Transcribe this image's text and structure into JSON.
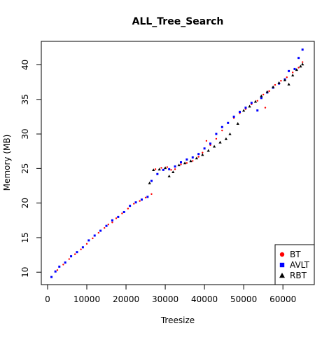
{
  "chart_data": {
    "type": "scatter",
    "title": "ALL_Tree_Search",
    "xlabel": "Treesize",
    "ylabel": "Memory (MB)",
    "xlim": [
      -1600,
      68000
    ],
    "ylim": [
      8.2,
      43.4
    ],
    "x_ticks": [
      0,
      10000,
      20000,
      30000,
      40000,
      50000,
      60000
    ],
    "y_ticks": [
      10,
      15,
      20,
      25,
      30,
      35,
      40
    ],
    "legend_position": "bottom-right",
    "grid": false,
    "series": [
      {
        "name": "BT",
        "color": "#ff0000",
        "marker": "circle",
        "points": [
          [
            1000,
            9.3
          ],
          [
            2500,
            10.3
          ],
          [
            4000,
            11.1
          ],
          [
            5500,
            11.9
          ],
          [
            7000,
            12.6
          ],
          [
            8500,
            13.3
          ],
          [
            10000,
            14.1
          ],
          [
            11500,
            14.9
          ],
          [
            13000,
            15.7
          ],
          [
            14500,
            16.4
          ],
          [
            15500,
            16.9
          ],
          [
            16500,
            17.2
          ],
          [
            17500,
            17.8
          ],
          [
            19000,
            18.5
          ],
          [
            20500,
            19.2
          ],
          [
            22000,
            19.9
          ],
          [
            23500,
            20.3
          ],
          [
            25000,
            20.8
          ],
          [
            26500,
            21.3
          ],
          [
            27500,
            24.9
          ],
          [
            29000,
            25.1
          ],
          [
            30500,
            25.2
          ],
          [
            31500,
            24.8
          ],
          [
            32500,
            24.9
          ],
          [
            34000,
            25.6
          ],
          [
            35500,
            25.8
          ],
          [
            37000,
            26.1
          ],
          [
            38500,
            26.7
          ],
          [
            39500,
            27.3
          ],
          [
            40500,
            29.0
          ],
          [
            41500,
            28.4
          ],
          [
            43000,
            29.3
          ],
          [
            44500,
            30.5
          ],
          [
            46000,
            31.6
          ],
          [
            47500,
            32.3
          ],
          [
            49000,
            33.0
          ],
          [
            50500,
            33.6
          ],
          [
            52000,
            34.3
          ],
          [
            53500,
            34.8
          ],
          [
            55000,
            35.7
          ],
          [
            55500,
            33.8
          ],
          [
            56500,
            36.2
          ],
          [
            58000,
            37.1
          ],
          [
            59500,
            37.7
          ],
          [
            61000,
            38.2
          ],
          [
            62500,
            38.9
          ],
          [
            64000,
            39.6
          ],
          [
            65000,
            40.4
          ]
        ]
      },
      {
        "name": "AVLT",
        "color": "#0000ff",
        "marker": "square",
        "points": [
          [
            1000,
            9.3
          ],
          [
            2000,
            10.1
          ],
          [
            3000,
            10.8
          ],
          [
            4500,
            11.4
          ],
          [
            6000,
            12.3
          ],
          [
            7500,
            12.9
          ],
          [
            9000,
            13.6
          ],
          [
            10500,
            14.6
          ],
          [
            12000,
            15.3
          ],
          [
            13500,
            16.0
          ],
          [
            15000,
            16.7
          ],
          [
            16500,
            17.5
          ],
          [
            18000,
            18.0
          ],
          [
            19500,
            18.7
          ],
          [
            21000,
            19.6
          ],
          [
            22500,
            20.1
          ],
          [
            24000,
            20.5
          ],
          [
            25500,
            20.9
          ],
          [
            26500,
            23.2
          ],
          [
            28000,
            24.2
          ],
          [
            29500,
            24.8
          ],
          [
            31000,
            24.9
          ],
          [
            32500,
            25.3
          ],
          [
            34000,
            25.9
          ],
          [
            35500,
            26.3
          ],
          [
            37000,
            26.6
          ],
          [
            38500,
            27.1
          ],
          [
            40000,
            27.9
          ],
          [
            41500,
            28.6
          ],
          [
            43000,
            30.0
          ],
          [
            44500,
            31.0
          ],
          [
            46000,
            31.6
          ],
          [
            47500,
            32.5
          ],
          [
            49000,
            33.2
          ],
          [
            50500,
            33.8
          ],
          [
            52000,
            34.5
          ],
          [
            53500,
            33.4
          ],
          [
            54500,
            35.2
          ],
          [
            56000,
            36.0
          ],
          [
            57500,
            36.7
          ],
          [
            59000,
            37.3
          ],
          [
            60500,
            37.9
          ],
          [
            61500,
            39.1
          ],
          [
            63000,
            39.4
          ],
          [
            64000,
            41.0
          ],
          [
            65000,
            42.2
          ]
        ]
      },
      {
        "name": "RBT",
        "color": "#000000",
        "marker": "triangle",
        "points": [
          [
            26000,
            22.9
          ],
          [
            27000,
            24.8
          ],
          [
            28500,
            24.9
          ],
          [
            30000,
            25.1
          ],
          [
            31000,
            23.9
          ],
          [
            32000,
            24.5
          ],
          [
            33500,
            25.5
          ],
          [
            35000,
            25.8
          ],
          [
            36500,
            26.1
          ],
          [
            38000,
            26.5
          ],
          [
            39500,
            27.0
          ],
          [
            41000,
            27.6
          ],
          [
            42500,
            28.2
          ],
          [
            44000,
            28.8
          ],
          [
            45500,
            29.3
          ],
          [
            46500,
            30.0
          ],
          [
            48500,
            31.5
          ],
          [
            50000,
            33.4
          ],
          [
            51500,
            34.0
          ],
          [
            53000,
            34.7
          ],
          [
            54500,
            35.5
          ],
          [
            56000,
            36.1
          ],
          [
            57500,
            36.8
          ],
          [
            59000,
            37.4
          ],
          [
            60500,
            37.8
          ],
          [
            61500,
            37.2
          ],
          [
            62500,
            38.5
          ],
          [
            63500,
            39.3
          ],
          [
            64500,
            39.8
          ],
          [
            65000,
            40.1
          ]
        ]
      }
    ]
  }
}
